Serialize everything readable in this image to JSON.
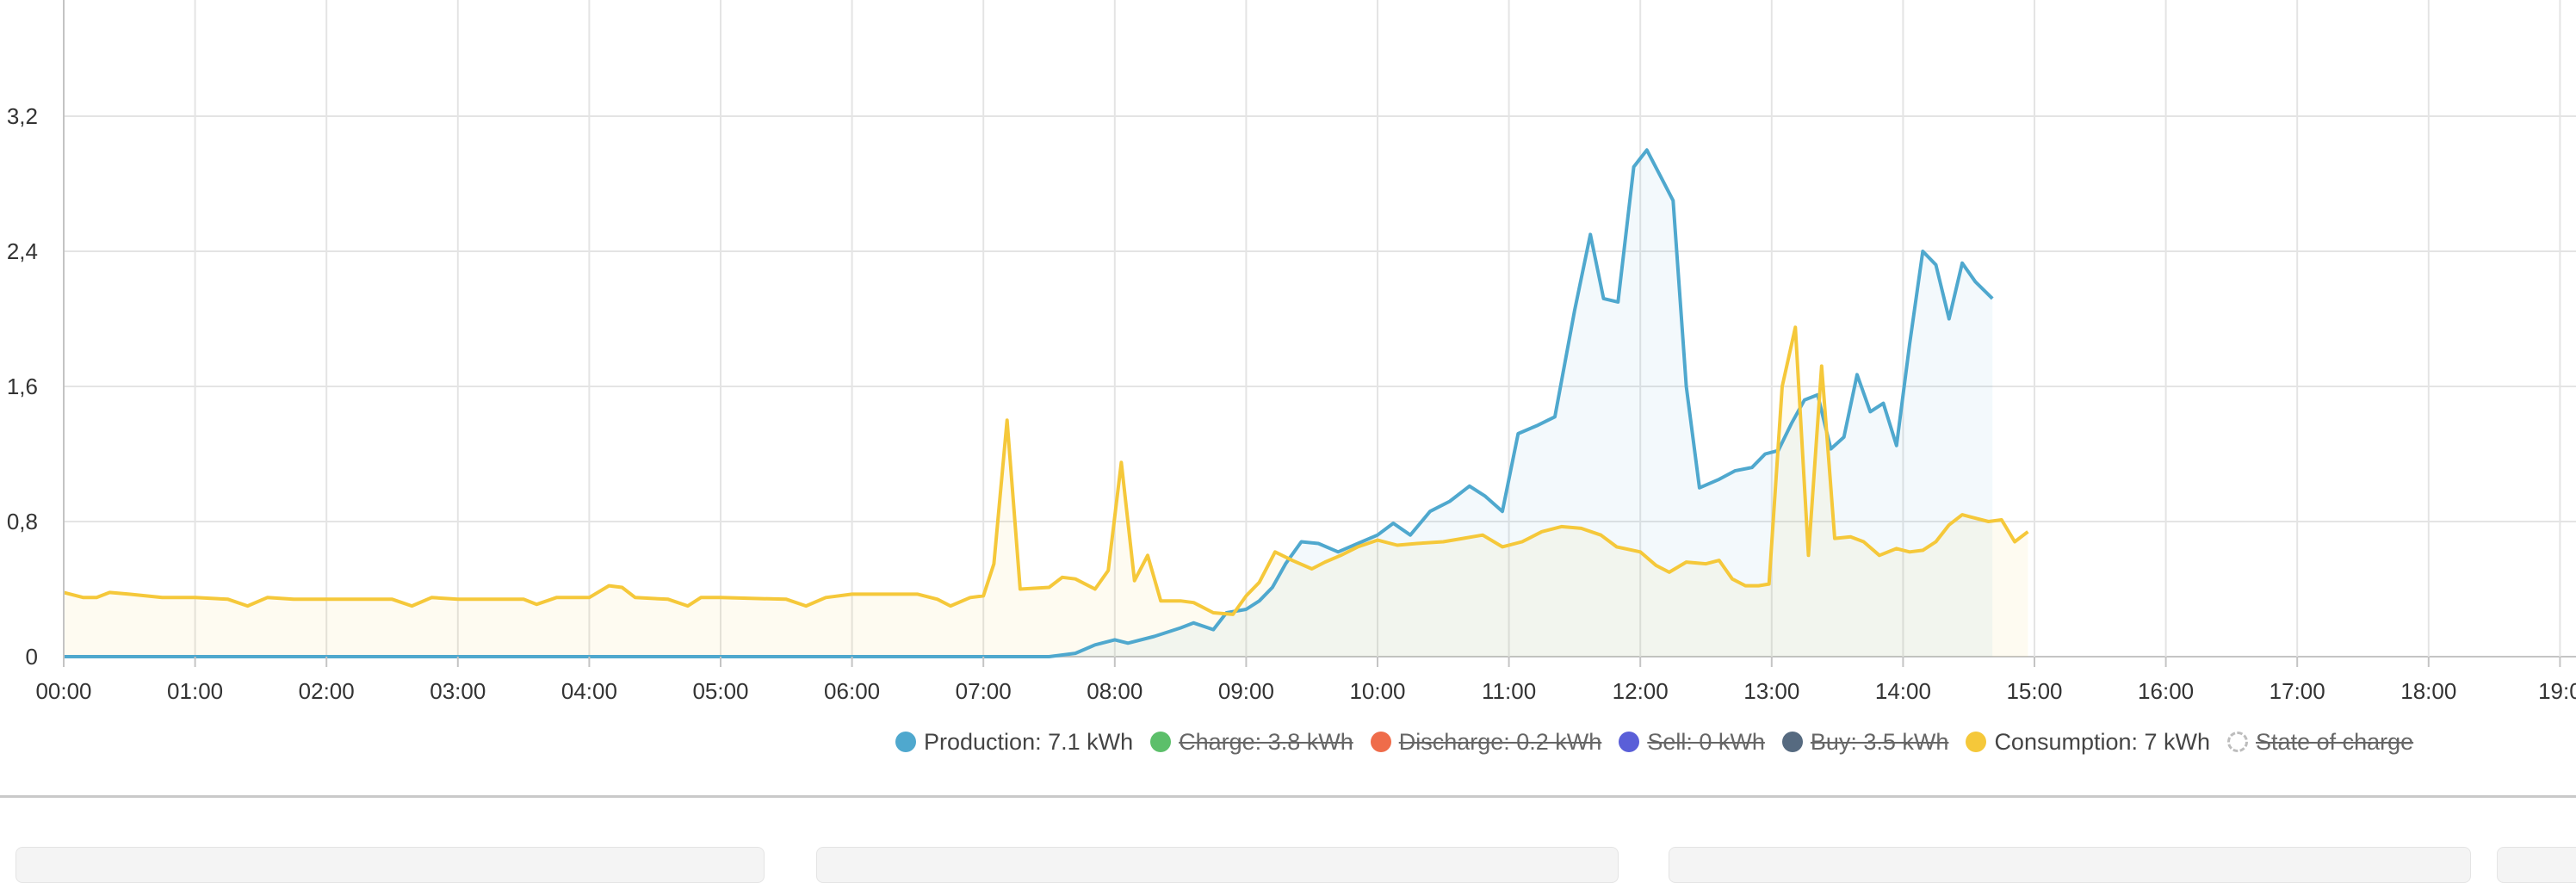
{
  "chart_data": {
    "type": "line",
    "y_ticks": [
      "0",
      "0,8",
      "1,6",
      "2,4",
      "3,2"
    ],
    "ylim": [
      0,
      3.9
    ],
    "x_ticks": [
      "00:00",
      "01:00",
      "02:00",
      "03:00",
      "04:00",
      "05:00",
      "06:00",
      "07:00",
      "08:00",
      "09:00",
      "10:00",
      "11:00",
      "12:00",
      "13:00",
      "14:00",
      "15:00",
      "16:00",
      "17:00",
      "18:00",
      "19:0"
    ],
    "xlim": [
      0,
      19.5
    ],
    "grid": true,
    "legend_position": "bottom",
    "series": [
      {
        "name": "Production",
        "label": "Production: 7.1 kWh",
        "color": "#4fa8ce",
        "visible": true,
        "points": [
          [
            0,
            0
          ],
          [
            1,
            0
          ],
          [
            2,
            0
          ],
          [
            3,
            0
          ],
          [
            4,
            0
          ],
          [
            5,
            0
          ],
          [
            6,
            0
          ],
          [
            7,
            0
          ],
          [
            7.5,
            0
          ],
          [
            7.7,
            0.02
          ],
          [
            7.85,
            0.07
          ],
          [
            8.0,
            0.1
          ],
          [
            8.1,
            0.08
          ],
          [
            8.3,
            0.12
          ],
          [
            8.5,
            0.17
          ],
          [
            8.6,
            0.2
          ],
          [
            8.75,
            0.16
          ],
          [
            8.85,
            0.26
          ],
          [
            9.0,
            0.28
          ],
          [
            9.1,
            0.33
          ],
          [
            9.2,
            0.41
          ],
          [
            9.3,
            0.55
          ],
          [
            9.42,
            0.68
          ],
          [
            9.55,
            0.67
          ],
          [
            9.7,
            0.62
          ],
          [
            9.85,
            0.67
          ],
          [
            10.0,
            0.72
          ],
          [
            10.12,
            0.79
          ],
          [
            10.25,
            0.72
          ],
          [
            10.4,
            0.86
          ],
          [
            10.55,
            0.92
          ],
          [
            10.7,
            1.01
          ],
          [
            10.82,
            0.95
          ],
          [
            10.95,
            0.86
          ],
          [
            11.07,
            1.32
          ],
          [
            11.22,
            1.37
          ],
          [
            11.35,
            1.42
          ],
          [
            11.5,
            2.05
          ],
          [
            11.62,
            2.5
          ],
          [
            11.72,
            2.12
          ],
          [
            11.83,
            2.1
          ],
          [
            11.95,
            2.9
          ],
          [
            12.05,
            3.0
          ],
          [
            12.15,
            2.85
          ],
          [
            12.25,
            2.7
          ],
          [
            12.35,
            1.6
          ],
          [
            12.45,
            1.0
          ],
          [
            12.6,
            1.05
          ],
          [
            12.72,
            1.1
          ],
          [
            12.85,
            1.12
          ],
          [
            12.95,
            1.2
          ],
          [
            13.05,
            1.22
          ],
          [
            13.15,
            1.38
          ],
          [
            13.25,
            1.52
          ],
          [
            13.35,
            1.55
          ],
          [
            13.45,
            1.23
          ],
          [
            13.55,
            1.3
          ],
          [
            13.65,
            1.67
          ],
          [
            13.75,
            1.45
          ],
          [
            13.85,
            1.5
          ],
          [
            13.95,
            1.25
          ],
          [
            14.05,
            1.85
          ],
          [
            14.15,
            2.4
          ],
          [
            14.25,
            2.32
          ],
          [
            14.35,
            2.0
          ],
          [
            14.45,
            2.33
          ],
          [
            14.55,
            2.22
          ],
          [
            14.68,
            2.12
          ],
          [
            14.68,
            2.12
          ]
        ]
      },
      {
        "name": "Charge",
        "label": "Charge: 3.8 kWh",
        "color": "#5cbf6a",
        "visible": false
      },
      {
        "name": "Discharge",
        "label": "Discharge: 0.2 kWh",
        "color": "#ef6c4a",
        "visible": false
      },
      {
        "name": "Sell",
        "label": "Sell: 0 kWh",
        "color": "#5a5fd8",
        "visible": false
      },
      {
        "name": "Buy",
        "label": "Buy: 3.5 kWh",
        "color": "#566a80",
        "visible": false
      },
      {
        "name": "Consumption",
        "label": "Consumption: 7 kWh",
        "color": "#f5c83a",
        "visible": true,
        "points": [
          [
            0,
            0.38
          ],
          [
            0.15,
            0.35
          ],
          [
            0.25,
            0.35
          ],
          [
            0.35,
            0.38
          ],
          [
            0.5,
            0.37
          ],
          [
            0.75,
            0.35
          ],
          [
            1.0,
            0.35
          ],
          [
            1.25,
            0.34
          ],
          [
            1.4,
            0.3
          ],
          [
            1.55,
            0.35
          ],
          [
            1.75,
            0.34
          ],
          [
            2.0,
            0.34
          ],
          [
            2.5,
            0.34
          ],
          [
            2.65,
            0.3
          ],
          [
            2.8,
            0.35
          ],
          [
            3.0,
            0.34
          ],
          [
            3.5,
            0.34
          ],
          [
            3.6,
            0.31
          ],
          [
            3.75,
            0.35
          ],
          [
            4.0,
            0.35
          ],
          [
            4.15,
            0.42
          ],
          [
            4.25,
            0.41
          ],
          [
            4.35,
            0.35
          ],
          [
            4.6,
            0.34
          ],
          [
            4.75,
            0.3
          ],
          [
            4.85,
            0.35
          ],
          [
            5.0,
            0.35
          ],
          [
            5.5,
            0.34
          ],
          [
            5.65,
            0.3
          ],
          [
            5.8,
            0.35
          ],
          [
            6.0,
            0.37
          ],
          [
            6.5,
            0.37
          ],
          [
            6.65,
            0.34
          ],
          [
            6.75,
            0.3
          ],
          [
            6.9,
            0.35
          ],
          [
            7.0,
            0.36
          ],
          [
            7.08,
            0.55
          ],
          [
            7.18,
            1.4
          ],
          [
            7.28,
            0.4
          ],
          [
            7.5,
            0.41
          ],
          [
            7.6,
            0.47
          ],
          [
            7.7,
            0.46
          ],
          [
            7.85,
            0.4
          ],
          [
            7.95,
            0.51
          ],
          [
            8.05,
            1.15
          ],
          [
            8.15,
            0.45
          ],
          [
            8.25,
            0.6
          ],
          [
            8.35,
            0.33
          ],
          [
            8.5,
            0.33
          ],
          [
            8.6,
            0.32
          ],
          [
            8.75,
            0.26
          ],
          [
            8.9,
            0.25
          ],
          [
            9.0,
            0.36
          ],
          [
            9.1,
            0.44
          ],
          [
            9.22,
            0.62
          ],
          [
            9.35,
            0.57
          ],
          [
            9.5,
            0.52
          ],
          [
            9.6,
            0.56
          ],
          [
            9.72,
            0.6
          ],
          [
            9.85,
            0.65
          ],
          [
            10.0,
            0.69
          ],
          [
            10.15,
            0.66
          ],
          [
            10.3,
            0.67
          ],
          [
            10.5,
            0.68
          ],
          [
            10.65,
            0.7
          ],
          [
            10.8,
            0.72
          ],
          [
            10.95,
            0.65
          ],
          [
            11.1,
            0.68
          ],
          [
            11.25,
            0.74
          ],
          [
            11.4,
            0.77
          ],
          [
            11.55,
            0.76
          ],
          [
            11.7,
            0.72
          ],
          [
            11.82,
            0.65
          ],
          [
            12.0,
            0.62
          ],
          [
            12.12,
            0.54
          ],
          [
            12.22,
            0.5
          ],
          [
            12.35,
            0.56
          ],
          [
            12.5,
            0.55
          ],
          [
            12.6,
            0.57
          ],
          [
            12.7,
            0.46
          ],
          [
            12.8,
            0.42
          ],
          [
            12.9,
            0.42
          ],
          [
            12.98,
            0.43
          ],
          [
            13.08,
            1.6
          ],
          [
            13.18,
            1.95
          ],
          [
            13.28,
            0.6
          ],
          [
            13.38,
            1.72
          ],
          [
            13.48,
            0.7
          ],
          [
            13.6,
            0.71
          ],
          [
            13.7,
            0.68
          ],
          [
            13.82,
            0.6
          ],
          [
            13.95,
            0.64
          ],
          [
            14.05,
            0.62
          ],
          [
            14.15,
            0.63
          ],
          [
            14.25,
            0.68
          ],
          [
            14.35,
            0.78
          ],
          [
            14.45,
            0.84
          ],
          [
            14.55,
            0.82
          ],
          [
            14.65,
            0.8
          ],
          [
            14.75,
            0.81
          ],
          [
            14.85,
            0.68
          ],
          [
            14.95,
            0.74
          ]
        ]
      },
      {
        "name": "State of charge",
        "label": "State of charge",
        "color": "#bdbdbd",
        "visible": false
      }
    ]
  }
}
